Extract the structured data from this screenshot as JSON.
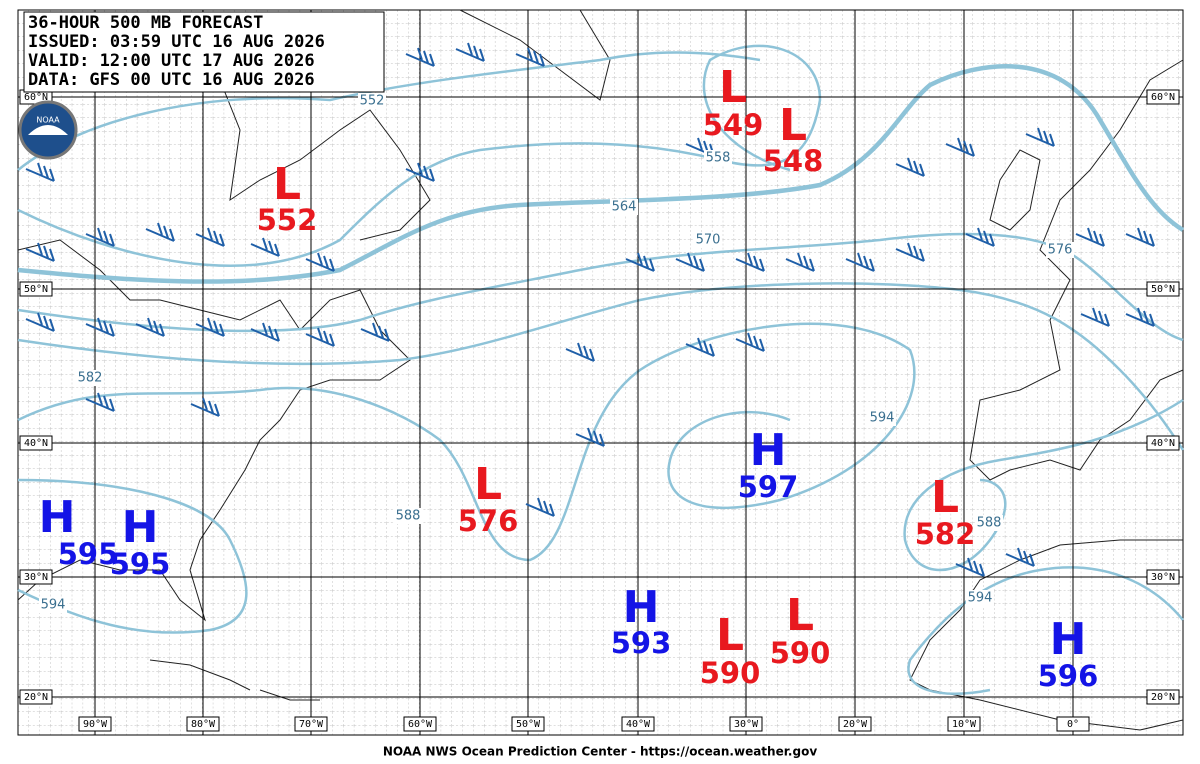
{
  "header": {
    "lines": [
      "36-HOUR 500 MB FORECAST",
      "ISSUED: 03:59 UTC 16 AUG 2026",
      "VALID:  12:00 UTC 17 AUG 2026",
      "DATA:   GFS 00 UTC 16 AUG 2026"
    ]
  },
  "logo": "NOAA",
  "centers": [
    {
      "type": "L",
      "value": "549"
    },
    {
      "type": "L",
      "value": "548"
    },
    {
      "type": "L",
      "value": "552"
    },
    {
      "type": "L",
      "value": "576"
    },
    {
      "type": "H",
      "value": "597"
    },
    {
      "type": "L",
      "value": "582"
    },
    {
      "type": "H",
      "value": "595"
    },
    {
      "type": "H",
      "value": "595"
    },
    {
      "type": "H",
      "value": "593"
    },
    {
      "type": "L",
      "value": "590"
    },
    {
      "type": "L",
      "value": "590"
    },
    {
      "type": "H",
      "value": "596"
    }
  ],
  "contour_labels": [
    "552",
    "558",
    "564",
    "570",
    "576",
    "582",
    "588",
    "588",
    "594",
    "594",
    "594"
  ],
  "lat_labels": [
    "60°N",
    "50°N",
    "40°N",
    "30°N",
    "20°N"
  ],
  "lon_labels": [
    "90°W",
    "80°W",
    "70°W",
    "60°W",
    "50°W",
    "40°W",
    "30°W",
    "20°W",
    "10°W",
    "0°"
  ],
  "footer": "NOAA NWS Ocean Prediction Center - https://ocean.weather.gov"
}
